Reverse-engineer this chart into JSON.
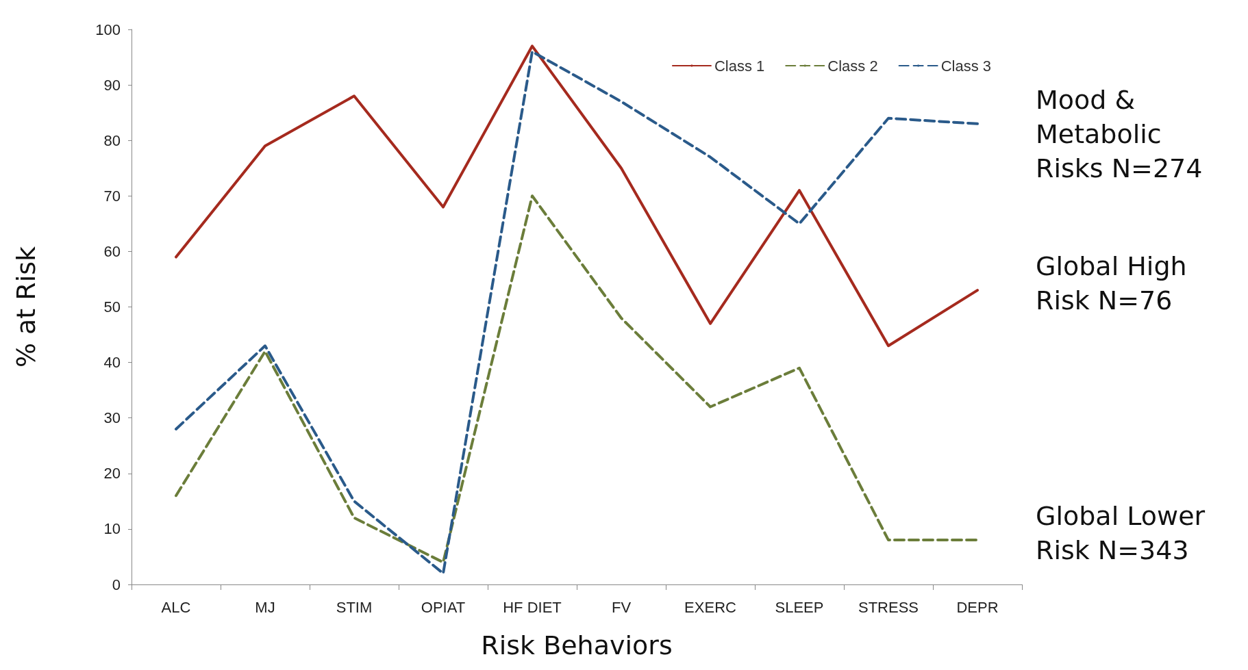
{
  "chart_data": {
    "type": "line",
    "xlabel": "Risk Behaviors",
    "ylabel": "% at Risk",
    "categories": [
      "ALC",
      "MJ",
      "STIM",
      "OPIAT",
      "HF DIET",
      "FV",
      "EXERC",
      "SLEEP",
      "STRESS",
      "DEPR"
    ],
    "series": [
      {
        "name": "Class 1",
        "color": "#a52a1e",
        "line_style": "solid",
        "values": [
          59,
          79,
          88,
          68,
          97,
          75,
          47,
          71,
          43,
          53
        ]
      },
      {
        "name": "Class 2",
        "color": "#6b7d3a",
        "line_style": "dashed",
        "values": [
          16,
          42,
          12,
          4,
          70,
          48,
          32,
          39,
          8,
          8
        ]
      },
      {
        "name": "Class 3",
        "color": "#2a5a8a",
        "line_style": "dashed",
        "values": [
          28,
          43,
          15,
          2,
          96,
          87,
          77,
          65,
          84,
          83
        ]
      }
    ],
    "ylim": [
      0,
      100
    ],
    "yticks": [
      0,
      10,
      20,
      30,
      40,
      50,
      60,
      70,
      80,
      90,
      100
    ],
    "grid": false,
    "legend": "top right",
    "marker": "none",
    "annotations": [
      {
        "text": "Mood & Metabolic Risks N=274",
        "x": "DEPR",
        "y": 83
      },
      {
        "text": "Global High Risk N=76",
        "x": "DEPR",
        "y": 53
      },
      {
        "text": "Global Lower Risk N=343",
        "x": "DEPR",
        "y": 8
      }
    ]
  }
}
